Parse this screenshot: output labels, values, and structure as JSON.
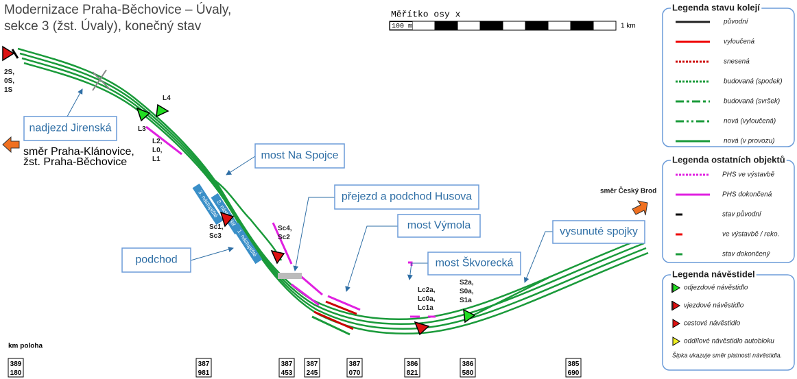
{
  "header": {
    "title_lines": [
      "Modernizace Praha-Běchovice – Úvaly,",
      "sekce 3 (žst. Úvaly), konečný stav"
    ]
  },
  "scale": {
    "label": "Měřítko osy x",
    "start": "100 m",
    "end": "1 km"
  },
  "legend_tracks": {
    "title": "Legenda stavu kolejí",
    "items": [
      "původní",
      "vyloučená",
      "snesená",
      "budovaná (spodek)",
      "budovaná (svršek)",
      "nová (vyloučená)",
      "nová (v provozu)"
    ]
  },
  "legend_objects": {
    "title": "Legenda ostatních objektů",
    "items": [
      "PHS ve výstavbě",
      "PHS dokončená",
      "stav původní",
      "ve výstavbě / reko.",
      "stav dokončený"
    ]
  },
  "legend_signals": {
    "title": "Legenda návěstidel",
    "items": [
      "odjezdové návěstidlo",
      "vjezdové návěstidlo",
      "cestové návěstidlo",
      "oddílové návěstidlo autobloku"
    ],
    "note": "Šipka ukazuje směr platnosti návěstidla."
  },
  "callouts": [
    "nadjezd Jirenská",
    "most Na Spojce",
    "přejezd a podchod Husova",
    "most Výmola",
    "podchod",
    "most Škvorecká",
    "vysunuté spojky"
  ],
  "directions": {
    "west": [
      "směr Praha-Klánovice,",
      "žst. Praha-Běchovice"
    ],
    "east": "směr Český Brod"
  },
  "signal_labels": [
    [
      "2S,",
      "0S,",
      "1S"
    ],
    [
      "L4"
    ],
    [
      "L3"
    ],
    [
      "L2,",
      "L0,",
      "L1"
    ],
    [
      "Sc1,",
      "Sc3"
    ],
    [
      "Sc4,",
      "Sc2"
    ],
    [
      "Lc2a,",
      "Lc0a,",
      "Lc1a"
    ],
    [
      "S2a,",
      "S0a,",
      "S1a"
    ]
  ],
  "platforms": [
    "3. nástupiště",
    "2. nástupiště",
    "1. nástupiště"
  ],
  "km": {
    "label": "km poloha",
    "positions": [
      [
        "389",
        "180"
      ],
      [
        "387",
        "981"
      ],
      [
        "387",
        "453"
      ],
      [
        "387",
        "245"
      ],
      [
        "387",
        "070"
      ],
      [
        "386",
        "821"
      ],
      [
        "386",
        "580"
      ],
      [
        "385",
        "690"
      ]
    ]
  }
}
